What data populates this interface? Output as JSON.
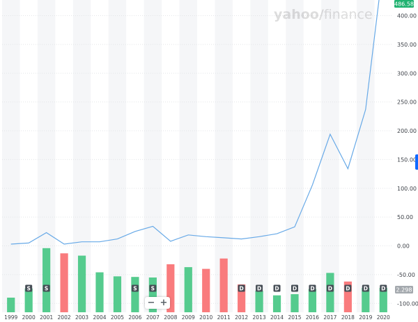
{
  "brand": {
    "left": "yahoo",
    "slash": "/",
    "right": "finance"
  },
  "chart_data": {
    "type": "line",
    "x_categories": [
      "1999",
      "2000",
      "2001",
      "2002",
      "2003",
      "2004",
      "2005",
      "2006",
      "2007",
      "2008",
      "2009",
      "2010",
      "2011",
      "2012",
      "2013",
      "2014",
      "2015",
      "2016",
      "2017",
      "2018",
      "2019",
      "2020"
    ],
    "price_series": {
      "values": [
        3,
        5,
        23,
        3,
        7,
        7,
        12,
        25,
        34,
        8,
        19,
        16,
        14,
        12,
        16,
        21,
        33,
        106,
        194,
        134,
        237,
        486.58
      ]
    },
    "bar_series": {
      "values": [
        -90,
        -74,
        -4,
        -13,
        -17,
        -46,
        -53,
        -54,
        -55,
        -32,
        -37,
        -40,
        -22,
        -67,
        -78,
        -86,
        -84,
        -75,
        -47,
        -62,
        -73,
        -73
      ],
      "positive": [
        true,
        true,
        true,
        false,
        true,
        true,
        true,
        true,
        true,
        false,
        true,
        false,
        false,
        false,
        true,
        true,
        true,
        true,
        true,
        false,
        true,
        true
      ]
    },
    "markers": [
      {
        "year": "2000",
        "label": "S"
      },
      {
        "year": "2001",
        "label": "S"
      },
      {
        "year": "2006",
        "label": "S"
      },
      {
        "year": "2007",
        "label": "S"
      },
      {
        "year": "2012",
        "label": "D"
      },
      {
        "year": "2013",
        "label": "D"
      },
      {
        "year": "2014",
        "label": "D"
      },
      {
        "year": "2015",
        "label": "D"
      },
      {
        "year": "2016",
        "label": "D"
      },
      {
        "year": "2017",
        "label": "D"
      },
      {
        "year": "2018",
        "label": "D"
      },
      {
        "year": "2019",
        "label": "D"
      },
      {
        "year": "2020",
        "label": "D"
      }
    ],
    "y_ticks": [
      "400.00",
      "350.00",
      "300.00",
      "250.00",
      "200.00",
      "150.00",
      "100.00",
      "50.00",
      "0.00",
      "-50.00",
      "-100.00"
    ],
    "y_tick_values": [
      400,
      350,
      300,
      250,
      200,
      150,
      100,
      50,
      0,
      -50,
      -100
    ],
    "ylim": [
      -112,
      425
    ],
    "last_price_label": "486.58",
    "bar_badge_label": "2.298",
    "grid": true,
    "colors": {
      "line": "#67a9e7",
      "bar_up": "#55cb8e",
      "bar_down": "#f97b7d",
      "marker_bg": "#464e56",
      "price_badge": "#1fb270",
      "bar_badge": "#a4a9ae",
      "stripe": "#f5f6f8"
    }
  },
  "zoom": {
    "minus": "−",
    "plus": "+"
  }
}
